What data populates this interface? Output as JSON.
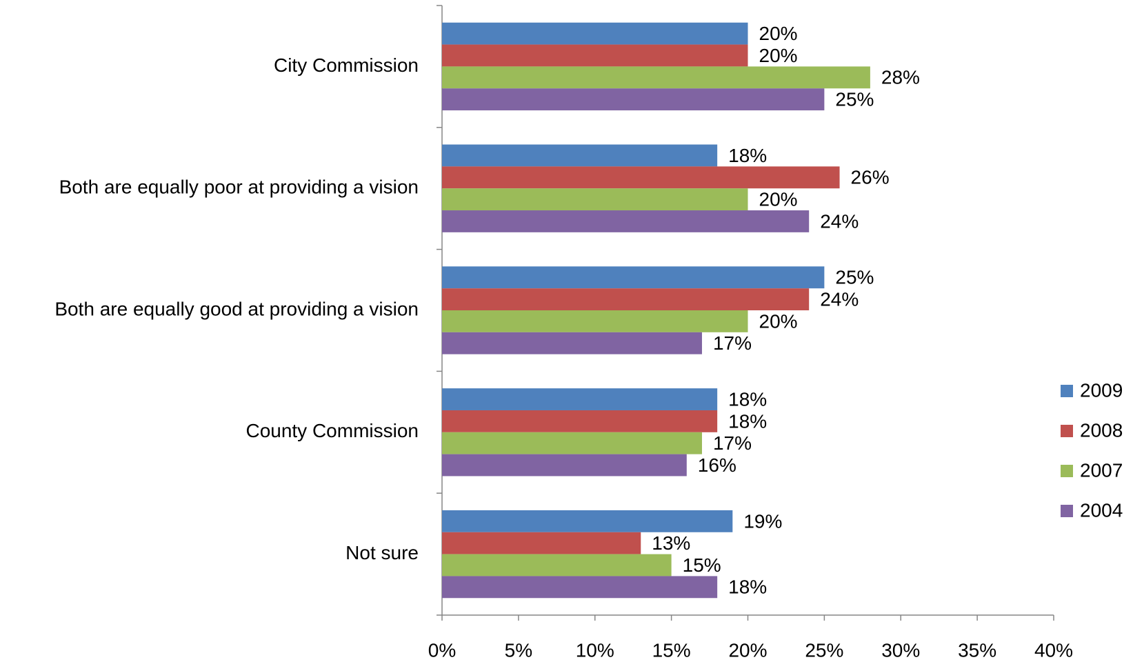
{
  "chart_data": {
    "type": "bar",
    "orientation": "horizontal",
    "categories": [
      "City Commission",
      "Both are equally poor at providing a vision",
      "Both are equally good at providing a vision",
      "County Commission",
      "Not sure"
    ],
    "series": [
      {
        "name": "2009",
        "color": "#4f81bd",
        "values": [
          20,
          18,
          25,
          18,
          19
        ],
        "value_labels": [
          "20%",
          "18%",
          "25%",
          "18%",
          "19%"
        ]
      },
      {
        "name": "2008",
        "color": "#c0504d",
        "values": [
          20,
          26,
          24,
          18,
          13
        ],
        "value_labels": [
          "20%",
          "26%",
          "24%",
          "18%",
          "13%"
        ]
      },
      {
        "name": "2007",
        "color": "#9bbb59",
        "values": [
          28,
          20,
          20,
          17,
          15
        ],
        "value_labels": [
          "28%",
          "20%",
          "20%",
          "17%",
          "15%"
        ]
      },
      {
        "name": "2004",
        "color": "#8064a2",
        "values": [
          25,
          24,
          17,
          16,
          18
        ],
        "value_labels": [
          "25%",
          "24%",
          "17%",
          "16%",
          "18%"
        ]
      }
    ],
    "xlim": [
      0,
      40
    ],
    "xticks": [
      {
        "value": 0,
        "label": "0%"
      },
      {
        "value": 5,
        "label": "5%"
      },
      {
        "value": 10,
        "label": "10%"
      },
      {
        "value": 15,
        "label": "15%"
      },
      {
        "value": 20,
        "label": "20%"
      },
      {
        "value": 25,
        "label": "25%"
      },
      {
        "value": 30,
        "label": "30%"
      },
      {
        "value": 35,
        "label": "35%"
      },
      {
        "value": 40,
        "label": "40%"
      }
    ],
    "legend": "right"
  }
}
